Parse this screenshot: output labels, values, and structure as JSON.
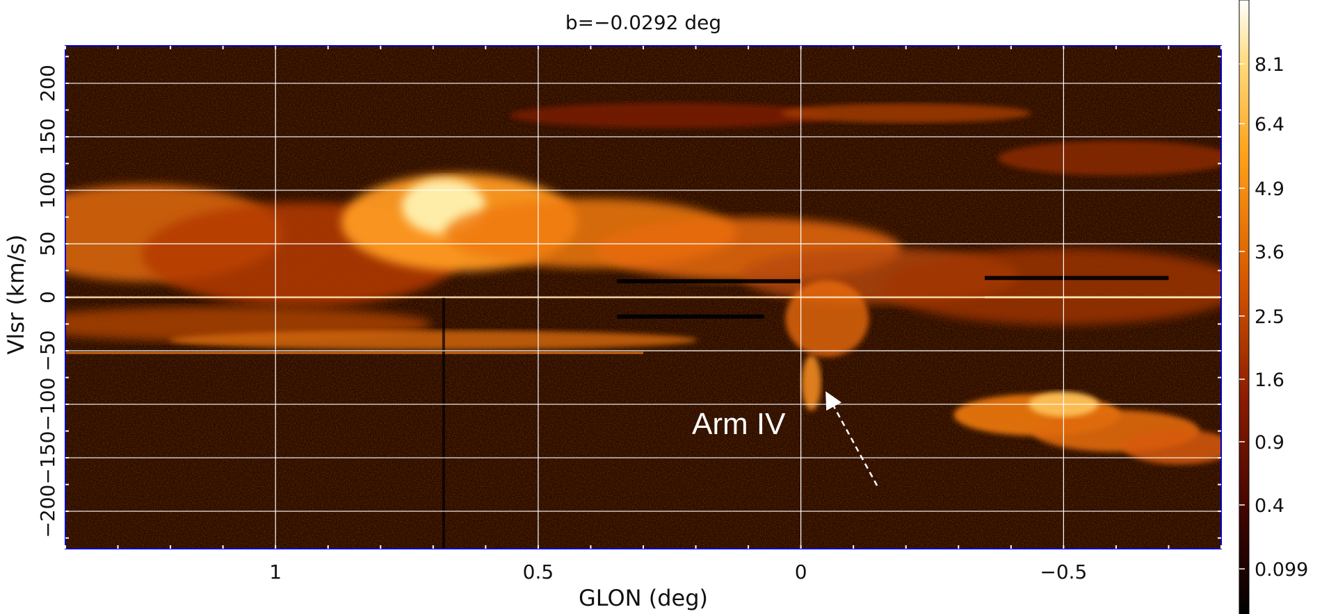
{
  "chart_data": {
    "type": "heatmap",
    "title": "b=−0.0292 deg",
    "xlabel": "GLON (deg)",
    "ylabel": "Vlsr (km/s)",
    "xlim": [
      1.4,
      -0.8
    ],
    "ylim": [
      -235,
      235
    ],
    "x_ticks": [
      1,
      0.5,
      0,
      -0.5
    ],
    "x_tick_labels": [
      "1",
      "0.5",
      "0",
      "−0.5"
    ],
    "y_ticks": [
      200,
      150,
      100,
      50,
      0,
      -50,
      -100,
      -150,
      -200
    ],
    "y_tick_labels": [
      "200",
      "150",
      "100",
      "50",
      "0",
      "−50",
      "−100",
      "−150",
      "−200"
    ],
    "grid": true,
    "colormap": "heat",
    "colorbar_tick_labels": [
      "8.1",
      "6.4",
      "4.9",
      "3.6",
      "2.5",
      "1.6",
      "0.9",
      "0.4",
      "0.099"
    ],
    "annotation": {
      "text": "Arm IV",
      "arrow_from": [
        -0.145,
        -176
      ],
      "arrow_to": [
        -0.055,
        -95
      ]
    },
    "features": [
      {
        "name": "main emission band",
        "x_range": [
          1.4,
          -0.8
        ],
        "v_range": [
          -50,
          105
        ]
      },
      {
        "name": "negative-velocity branch",
        "x_range": [
          -0.35,
          -0.8
        ],
        "v_range": [
          -160,
          -80
        ]
      },
      {
        "name": "high-velocity streak",
        "x_range": [
          0.55,
          -0.8
        ],
        "v_range": [
          150,
          185
        ]
      }
    ],
    "colors": {
      "frame": "#0000cc",
      "grid": "#ffffff",
      "annotation": "#ffffff"
    }
  }
}
